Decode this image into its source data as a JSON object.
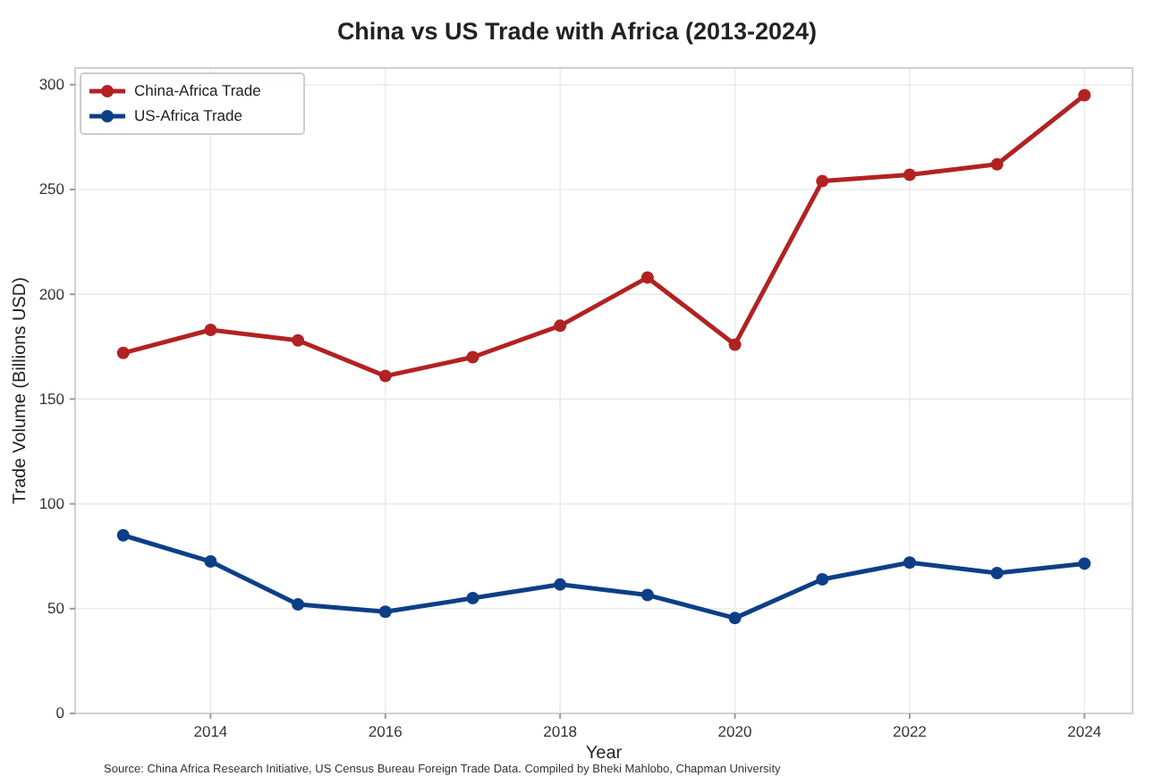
{
  "chart_data": {
    "type": "line",
    "title": "China vs US Trade with Africa (2013-2024)",
    "xlabel": "Year",
    "ylabel": "Trade Volume (Billions USD)",
    "annotations": [
      "Source: China Africa Research Initiative, US Census Bureau Foreign Trade Data. Compiled by Bheki Mahlobo, Chapman University"
    ],
    "x": [
      2013,
      2014,
      2015,
      2016,
      2017,
      2018,
      2019,
      2020,
      2021,
      2022,
      2023,
      2024
    ],
    "series": [
      {
        "name": "China-Africa Trade",
        "color": "#b22222",
        "values": [
          172,
          183,
          178,
          161,
          170,
          185,
          208,
          176,
          254,
          257,
          262,
          295
        ]
      },
      {
        "name": "US-Africa Trade",
        "color": "#0d3f87",
        "values": [
          85,
          72.5,
          52,
          48.5,
          55,
          61.5,
          56.5,
          45.5,
          64,
          72,
          67,
          71.5
        ]
      }
    ],
    "xlim": [
      2012.45,
      2024.55
    ],
    "xticks": [
      2014,
      2016,
      2018,
      2020,
      2022,
      2024
    ],
    "ylim": [
      0,
      308
    ],
    "yticks": [
      0,
      50,
      100,
      150,
      200,
      250,
      300
    ],
    "grid": true,
    "legend": "top left",
    "marker": "circle",
    "line_style": "solid"
  }
}
